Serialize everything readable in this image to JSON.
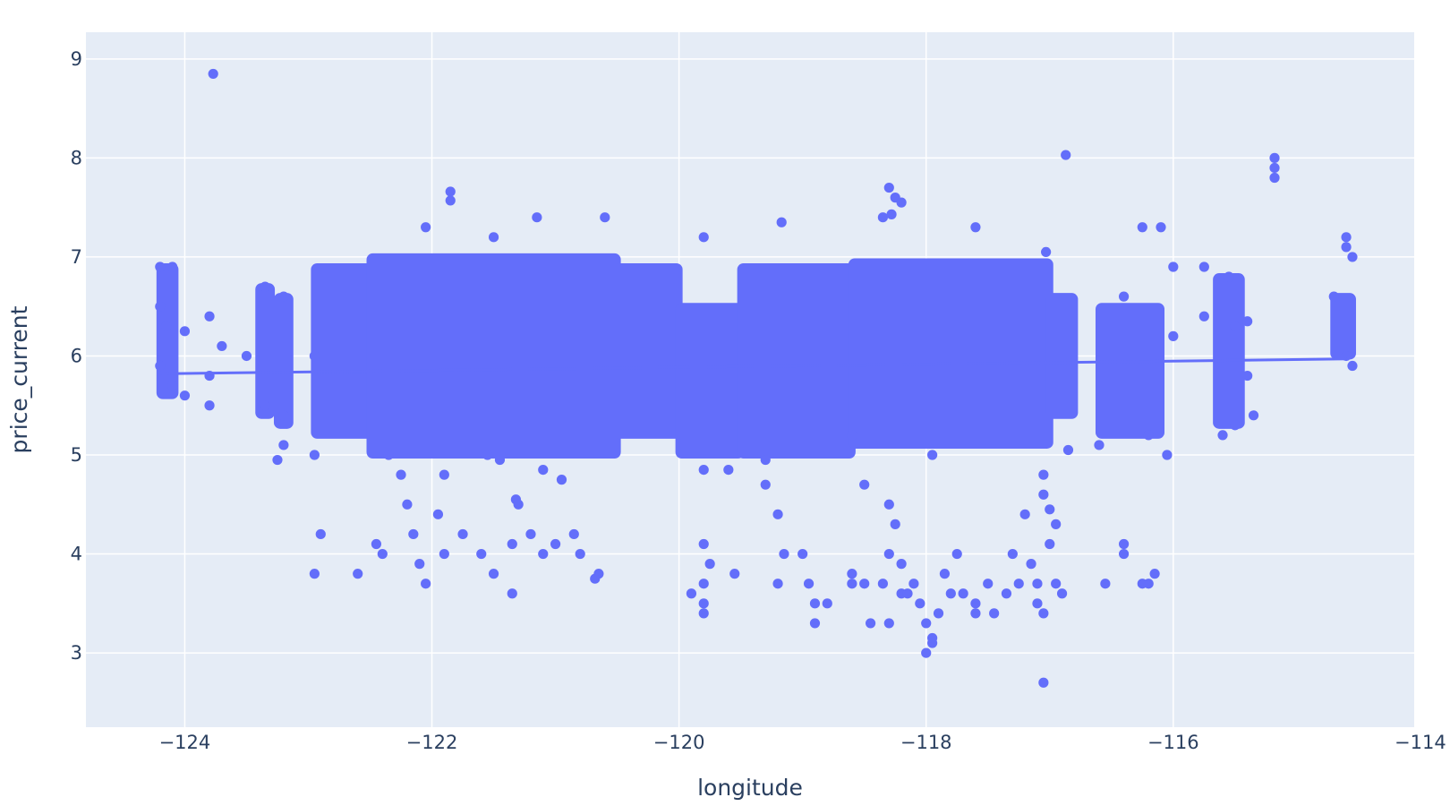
{
  "chart_data": {
    "type": "scatter",
    "xlabel": "longitude",
    "ylabel": "price_current",
    "xlim": [
      -124.8,
      -114.05
    ],
    "ylim": [
      2.25,
      9.27
    ],
    "x_ticks": [
      -124,
      -122,
      -120,
      -118,
      -116,
      -114
    ],
    "y_ticks": [
      3,
      4,
      5,
      6,
      7,
      8,
      9
    ],
    "x_tick_labels": [
      "−124",
      "−122",
      "−120",
      "−118",
      "−116",
      "−114"
    ],
    "y_tick_labels": [
      "3",
      "4",
      "5",
      "6",
      "7",
      "8",
      "9"
    ],
    "grid": true,
    "legend": "none",
    "colors": {
      "marker": "#636efa",
      "plot_bg": "#e5ecf6",
      "grid": "#ffffff",
      "text": "#2a3f5f"
    },
    "series": [
      {
        "type": "scatter",
        "points": [
          [
            -123.77,
            8.85
          ],
          [
            -116.87,
            8.03
          ],
          [
            -115.18,
            8.0
          ],
          [
            -115.18,
            7.9
          ],
          [
            -115.18,
            7.8
          ],
          [
            -118.3,
            7.7
          ],
          [
            -121.85,
            7.66
          ],
          [
            -121.85,
            7.57
          ],
          [
            -118.25,
            7.6
          ],
          [
            -118.2,
            7.55
          ],
          [
            -120.6,
            7.4
          ],
          [
            -121.15,
            7.4
          ],
          [
            -119.17,
            7.35
          ],
          [
            -118.35,
            7.4
          ],
          [
            -118.28,
            7.43
          ],
          [
            -116.25,
            7.3
          ],
          [
            -116.1,
            7.3
          ],
          [
            -117.6,
            7.3
          ],
          [
            -122.05,
            7.3
          ],
          [
            -119.8,
            7.2
          ],
          [
            -121.5,
            7.2
          ],
          [
            -117.03,
            7.05
          ],
          [
            -114.6,
            7.2
          ],
          [
            -114.6,
            7.1
          ],
          [
            -114.55,
            7.0
          ],
          [
            -124.2,
            6.9
          ],
          [
            -124.1,
            6.9
          ],
          [
            -123.35,
            6.7
          ],
          [
            -123.2,
            6.6
          ],
          [
            -114.7,
            6.6
          ],
          [
            -115.75,
            6.9
          ],
          [
            -115.55,
            6.8
          ],
          [
            -115.4,
            6.35
          ],
          [
            -116.4,
            6.6
          ],
          [
            -116.0,
            6.9
          ],
          [
            -124.2,
            6.5
          ],
          [
            -124.15,
            6.3
          ],
          [
            -124.0,
            6.25
          ],
          [
            -123.8,
            6.4
          ],
          [
            -123.7,
            6.1
          ],
          [
            -123.5,
            6.0
          ],
          [
            -122.95,
            6.0
          ],
          [
            -115.75,
            6.4
          ],
          [
            -115.5,
            6.3
          ],
          [
            -116.0,
            6.2
          ],
          [
            -124.2,
            5.9
          ],
          [
            -124.1,
            5.7
          ],
          [
            -124.0,
            5.6
          ],
          [
            -123.8,
            5.8
          ],
          [
            -123.8,
            5.5
          ],
          [
            -123.35,
            5.5
          ],
          [
            -123.2,
            5.4
          ],
          [
            -123.2,
            5.1
          ],
          [
            -123.25,
            4.95
          ],
          [
            -122.95,
            5.0
          ],
          [
            -115.4,
            5.8
          ],
          [
            -115.5,
            5.3
          ],
          [
            -115.6,
            5.2
          ],
          [
            -115.35,
            5.4
          ],
          [
            -114.6,
            6.0
          ],
          [
            -114.55,
            5.9
          ],
          [
            -116.05,
            5.0
          ],
          [
            -116.2,
            5.2
          ],
          [
            -116.6,
            5.1
          ],
          [
            -122.9,
            4.2
          ],
          [
            -122.95,
            3.8
          ],
          [
            -122.6,
            3.8
          ],
          [
            -122.45,
            4.1
          ],
          [
            -122.4,
            4.0
          ],
          [
            -122.2,
            4.5
          ],
          [
            -122.15,
            4.2
          ],
          [
            -122.1,
            3.9
          ],
          [
            -122.05,
            3.7
          ],
          [
            -121.95,
            4.4
          ],
          [
            -121.9,
            4.0
          ],
          [
            -121.75,
            4.2
          ],
          [
            -121.6,
            4.0
          ],
          [
            -121.5,
            3.8
          ],
          [
            -121.35,
            3.6
          ],
          [
            -121.2,
            4.2
          ],
          [
            -121.1,
            4.0
          ],
          [
            -121.35,
            4.1
          ],
          [
            -121.0,
            4.1
          ],
          [
            -120.85,
            4.2
          ],
          [
            -120.8,
            4.0
          ],
          [
            -120.65,
            3.8
          ],
          [
            -120.68,
            3.75
          ],
          [
            -121.32,
            4.55
          ],
          [
            -121.3,
            4.5
          ],
          [
            -119.9,
            3.6
          ],
          [
            -119.8,
            4.1
          ],
          [
            -119.75,
            3.9
          ],
          [
            -119.8,
            3.7
          ],
          [
            -119.8,
            3.5
          ],
          [
            -119.8,
            3.4
          ],
          [
            -119.55,
            3.8
          ],
          [
            -119.3,
            4.7
          ],
          [
            -119.2,
            4.4
          ],
          [
            -119.15,
            4.0
          ],
          [
            -119.0,
            4.0
          ],
          [
            -119.2,
            3.7
          ],
          [
            -118.95,
            3.7
          ],
          [
            -118.9,
            3.5
          ],
          [
            -118.9,
            3.3
          ],
          [
            -118.8,
            3.5
          ],
          [
            -118.6,
            3.8
          ],
          [
            -118.5,
            3.7
          ],
          [
            -118.5,
            4.7
          ],
          [
            -118.45,
            3.3
          ],
          [
            -118.3,
            4.5
          ],
          [
            -118.25,
            4.3
          ],
          [
            -118.3,
            4.0
          ],
          [
            -118.35,
            3.7
          ],
          [
            -118.3,
            3.3
          ],
          [
            -118.2,
            3.9
          ],
          [
            -118.1,
            3.7
          ],
          [
            -118.05,
            3.5
          ],
          [
            -118.0,
            3.3
          ],
          [
            -118.0,
            3.0
          ],
          [
            -117.95,
            3.1
          ],
          [
            -117.95,
            3.15
          ],
          [
            -117.9,
            3.4
          ],
          [
            -117.85,
            3.8
          ],
          [
            -117.75,
            4.0
          ],
          [
            -117.7,
            3.6
          ],
          [
            -117.6,
            3.4
          ],
          [
            -117.5,
            3.7
          ],
          [
            -117.45,
            3.4
          ],
          [
            -117.35,
            3.6
          ],
          [
            -117.3,
            4.0
          ],
          [
            -117.2,
            4.4
          ],
          [
            -117.15,
            3.9
          ],
          [
            -117.1,
            3.7
          ],
          [
            -117.05,
            4.6
          ],
          [
            -117.0,
            4.45
          ],
          [
            -116.95,
            4.3
          ],
          [
            -117.0,
            4.1
          ],
          [
            -116.95,
            3.7
          ],
          [
            -116.9,
            3.6
          ],
          [
            -117.05,
            3.4
          ],
          [
            -117.05,
            2.7
          ],
          [
            -116.55,
            3.7
          ],
          [
            -116.4,
            4.1
          ],
          [
            -116.4,
            4.0
          ],
          [
            -116.2,
            3.7
          ],
          [
            -116.15,
            3.8
          ],
          [
            -116.25,
            3.7
          ],
          [
            -118.2,
            3.6
          ],
          [
            -117.8,
            3.6
          ],
          [
            -118.6,
            3.7
          ],
          [
            -118.15,
            3.6
          ],
          [
            -117.25,
            3.7
          ],
          [
            -117.1,
            3.5
          ],
          [
            -117.6,
            3.5
          ],
          [
            -121.55,
            5.0
          ],
          [
            -121.1,
            4.85
          ],
          [
            -120.95,
            4.75
          ],
          [
            -119.8,
            4.85
          ],
          [
            -119.6,
            4.85
          ],
          [
            -119.3,
            4.95
          ],
          [
            -118.6,
            5.2
          ],
          [
            -117.95,
            5.0
          ],
          [
            -117.05,
            4.8
          ],
          [
            -116.85,
            5.05
          ],
          [
            -122.35,
            5.0
          ],
          [
            -122.25,
            4.8
          ],
          [
            -121.9,
            4.8
          ],
          [
            -121.45,
            4.95
          ]
        ]
      }
    ],
    "trendline": [
      [
        -124.2,
        5.82
      ],
      [
        -114.6,
        5.97
      ]
    ]
  }
}
